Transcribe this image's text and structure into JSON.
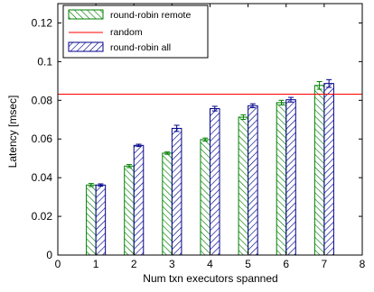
{
  "chart_data": {
    "type": "bar",
    "xlabel": "Num txn executors spanned",
    "ylabel": "Latency [msec]",
    "xlim": [
      0,
      8
    ],
    "ylim": [
      0,
      0.13
    ],
    "xticks": [
      "0",
      "1",
      "2",
      "3",
      "4",
      "5",
      "6",
      "7",
      "8"
    ],
    "yticks": [
      "0",
      "0.02",
      "0.04",
      "0.06",
      "0.08",
      "0.1",
      "0.12"
    ],
    "categories": [
      1,
      2,
      3,
      4,
      5,
      6,
      7
    ],
    "series": [
      {
        "name": "round-robin remote",
        "color": "#008000",
        "values": [
          0.0362,
          0.046,
          0.0527,
          0.0597,
          0.0713,
          0.0788,
          0.0877
        ],
        "errors": [
          0.0008,
          0.0008,
          0.0006,
          0.0008,
          0.0012,
          0.0012,
          0.002
        ]
      },
      {
        "name": "round-robin all",
        "color": "#00008b",
        "values": [
          0.0362,
          0.0567,
          0.0655,
          0.0757,
          0.0772,
          0.0803,
          0.0887
        ],
        "errors": [
          0.0006,
          0.0006,
          0.0016,
          0.0012,
          0.001,
          0.0012,
          0.002
        ]
      }
    ],
    "reference_line": {
      "name": "random",
      "color": "#ff0000",
      "value": 0.0832
    },
    "legend_position": "top-left",
    "grid": false
  }
}
